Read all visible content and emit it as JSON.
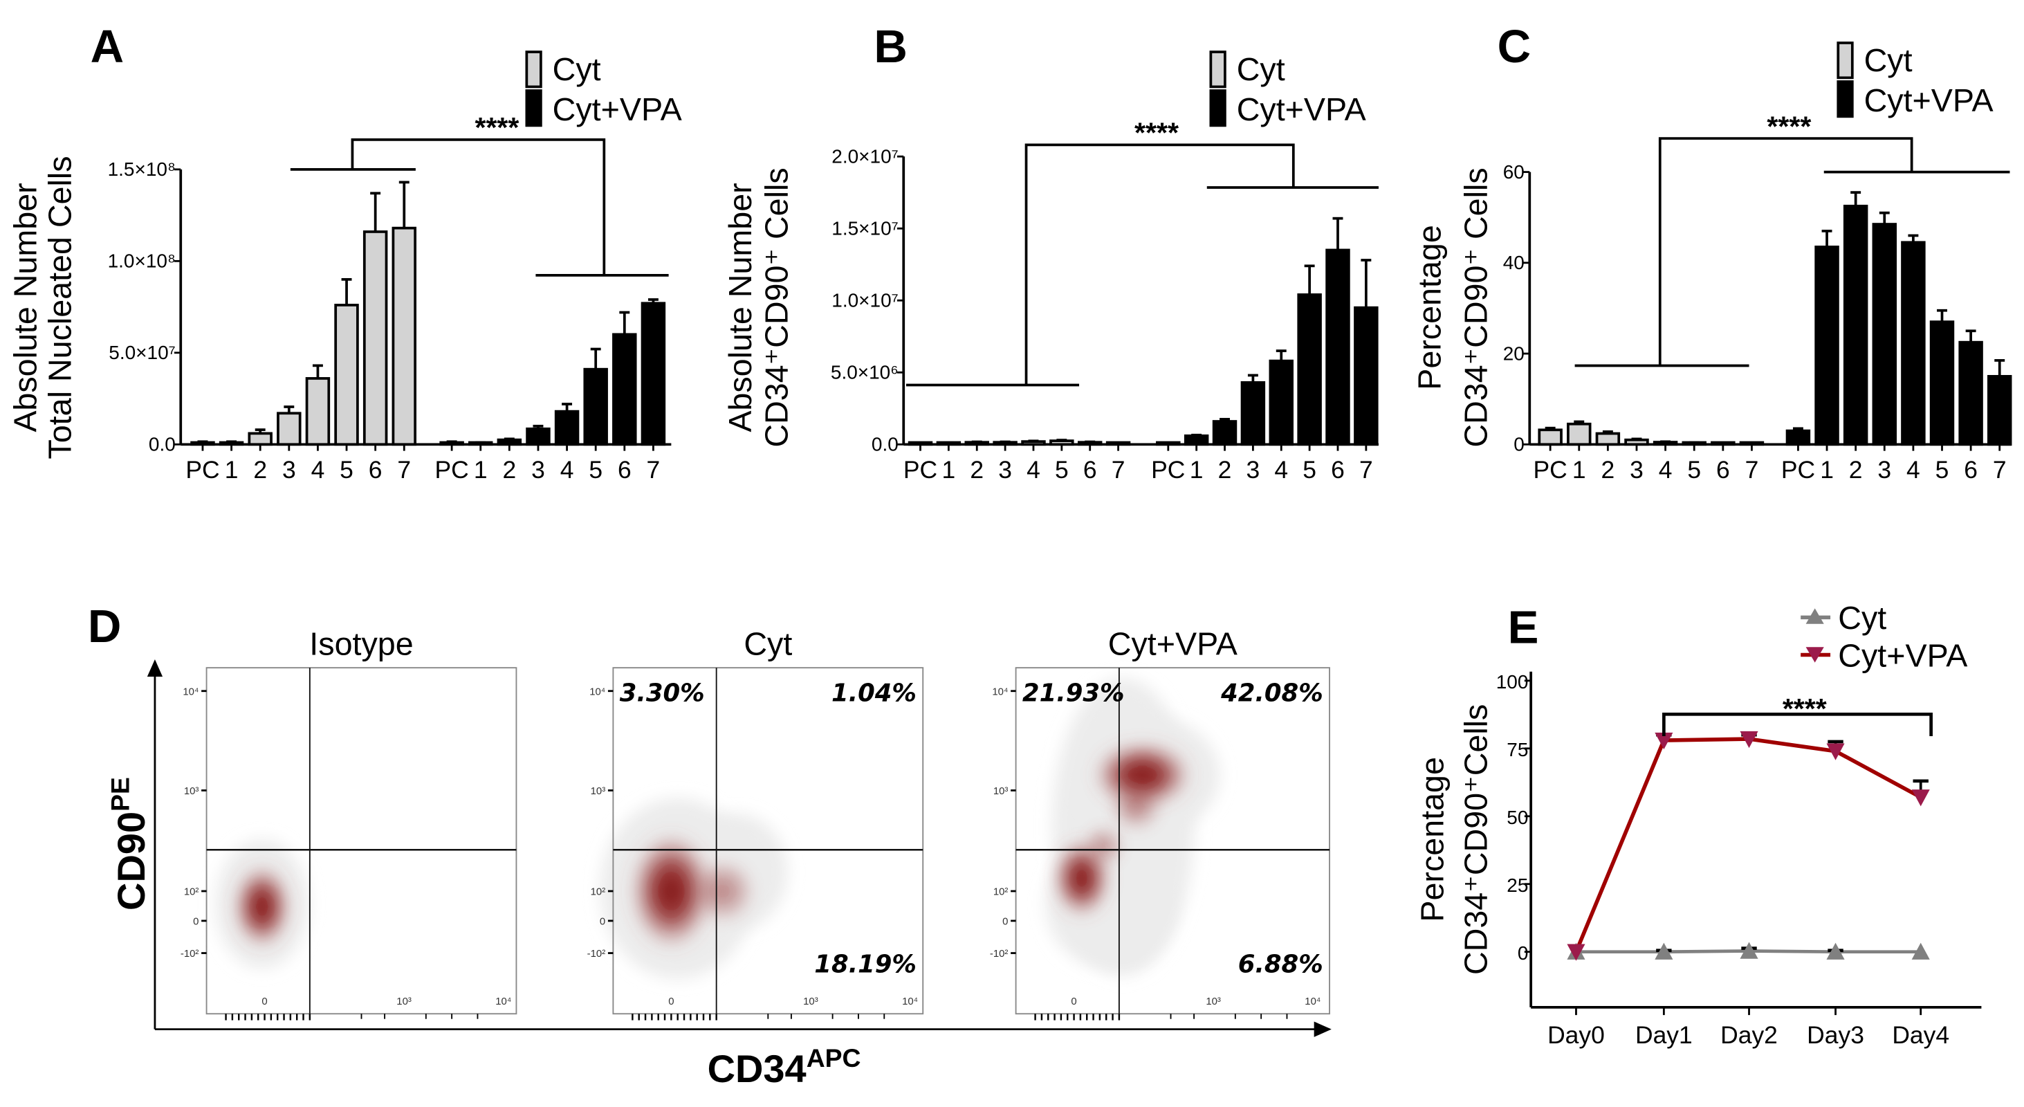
{
  "colors": {
    "cyt_bar": "#d3d3d3",
    "vpa_bar": "#000000",
    "line_vpa": "#a00000",
    "marker_vpa": "#9b1b4b",
    "line_cyt": "#808080",
    "density": "#7a0000"
  },
  "chart_data": [
    {
      "panel": "A",
      "type": "bar",
      "ylabel_line1": "Absolute Number",
      "ylabel_line2": "Total Nucleated Cells",
      "yticks": [
        "0.0",
        "5.0×10⁷",
        "1.0×10⁸",
        "1.5×10⁸"
      ],
      "ytick_values": [
        0,
        50000000,
        100000000,
        150000000
      ],
      "ylim": [
        0,
        150000000
      ],
      "categories": [
        "PC",
        "1",
        "2",
        "3",
        "4",
        "5",
        "6",
        "7"
      ],
      "legend": [
        "Cyt",
        "Cyt+VPA"
      ],
      "significance": "****",
      "series": [
        {
          "name": "Cyt",
          "values": [
            1000000,
            1000000,
            6000000,
            17000000,
            36000000,
            76000000,
            116000000,
            118000000
          ],
          "errors": [
            500000,
            500000,
            2000000,
            3500000,
            7000000,
            14000000,
            21000000,
            25000000
          ]
        },
        {
          "name": "Cyt+VPA",
          "values": [
            1000000,
            500000,
            2500000,
            8500000,
            18000000,
            41000000,
            60000000,
            77000000
          ],
          "errors": [
            500000,
            500000,
            500000,
            1500000,
            4000000,
            11000000,
            12000000,
            2000000
          ]
        }
      ]
    },
    {
      "panel": "B",
      "type": "bar",
      "ylabel_line1": "Absolute Number",
      "ylabel_line2": "CD34⁺CD90⁺ Cells",
      "yticks": [
        "0.0",
        "5.0×10⁶",
        "1.0×10⁷",
        "1.5×10⁷",
        "2.0×10⁷"
      ],
      "ytick_values": [
        0,
        5000000,
        10000000,
        15000000,
        20000000
      ],
      "ylim": [
        0,
        20000000
      ],
      "categories": [
        "PC",
        "1",
        "2",
        "3",
        "4",
        "5",
        "6",
        "7"
      ],
      "legend": [
        "Cyt",
        "Cyt+VPA"
      ],
      "significance": "****",
      "series": [
        {
          "name": "Cyt",
          "values": [
            50000,
            100000,
            150000,
            150000,
            200000,
            250000,
            150000,
            50000
          ],
          "errors": [
            0,
            20000,
            30000,
            30000,
            40000,
            50000,
            30000,
            10000
          ]
        },
        {
          "name": "Cyt+VPA",
          "values": [
            50000,
            600000,
            1600000,
            4300000,
            5800000,
            10400000,
            13500000,
            9500000
          ],
          "errors": [
            0,
            50000,
            150000,
            500000,
            700000,
            2000000,
            2200000,
            3300000
          ]
        }
      ]
    },
    {
      "panel": "C",
      "type": "bar",
      "ylabel_line1": "Percentage",
      "ylabel_line2": "CD34⁺CD90⁺ Cells",
      "yticks": [
        "0",
        "20",
        "40",
        "60"
      ],
      "ytick_values": [
        0,
        20,
        40,
        60
      ],
      "ylim": [
        0,
        60
      ],
      "categories": [
        "PC",
        "1",
        "2",
        "3",
        "4",
        "5",
        "6",
        "7"
      ],
      "legend": [
        "Cyt",
        "Cyt+VPA"
      ],
      "significance": "****",
      "series": [
        {
          "name": "Cyt",
          "values": [
            3.2,
            4.5,
            2.4,
            1.0,
            0.5,
            0.3,
            0.15,
            0.1
          ],
          "errors": [
            0.4,
            0.5,
            0.4,
            0.2,
            0.1,
            0.1,
            0.05,
            0.05
          ]
        },
        {
          "name": "Cyt+VPA",
          "values": [
            3.0,
            43.5,
            52.5,
            48.5,
            44.5,
            27,
            22.5,
            15
          ],
          "errors": [
            0.5,
            3.5,
            3,
            2.5,
            1.5,
            2.5,
            2.5,
            3.5
          ]
        }
      ]
    },
    {
      "panel": "E",
      "type": "line",
      "ylabel_line1": "Percentage",
      "ylabel_line2": "CD34⁺CD90⁺Cells",
      "yticks": [
        "0",
        "25",
        "50",
        "75",
        "100"
      ],
      "ytick_values": [
        0,
        25,
        50,
        75,
        100
      ],
      "ylim": [
        -10,
        100
      ],
      "categories": [
        "Day0",
        "Day1",
        "Day2",
        "Day3",
        "Day4"
      ],
      "significance": "****",
      "series": [
        {
          "name": "Cyt",
          "marker": "triangle-up",
          "values": [
            0,
            0,
            0.3,
            0,
            0
          ],
          "errors": [
            0,
            0.5,
            1,
            0.5,
            0
          ]
        },
        {
          "name": "Cyt+VPA",
          "marker": "triangle-down",
          "values": [
            0,
            78,
            78.5,
            74,
            57
          ],
          "errors": [
            0,
            2,
            1.5,
            3.5,
            6
          ]
        }
      ]
    }
  ],
  "panel_d": {
    "label": "D",
    "x_axis": "CD34",
    "x_axis_sup": "APC",
    "y_axis": "CD90",
    "y_axis_sup": "PE",
    "y_ticks": [
      "10⁴",
      "10³",
      "10²",
      "0",
      "-10²"
    ],
    "x_ticks": [
      "0",
      "10³",
      "10⁴"
    ],
    "plots": [
      {
        "title": "Isotype",
        "ul": "",
        "ur": "",
        "lr": ""
      },
      {
        "title": "Cyt",
        "ul": "3.30%",
        "ur": "1.04%",
        "lr": "18.19%"
      },
      {
        "title": "Cyt+VPA",
        "ul": "21.93%",
        "ur": "42.08%",
        "lr": "6.88%"
      }
    ]
  }
}
